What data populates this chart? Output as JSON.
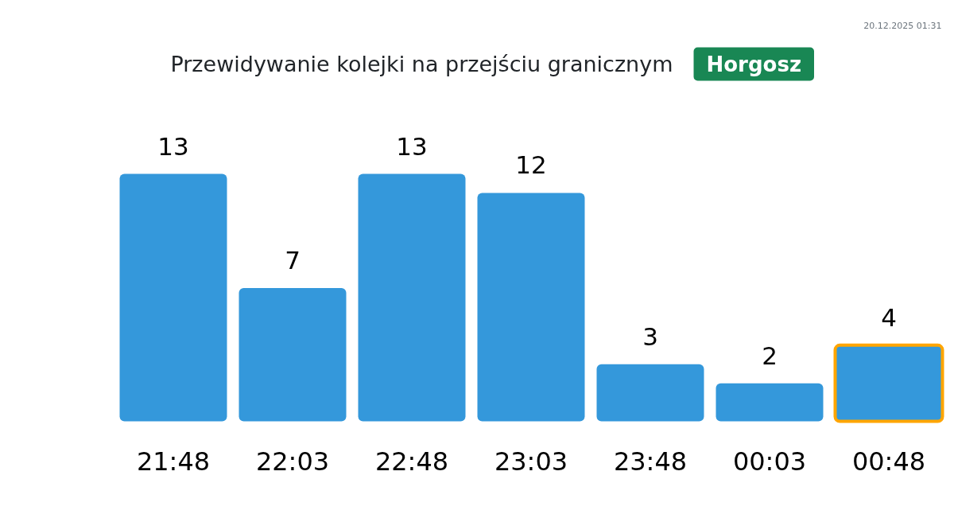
{
  "chart_data": {
    "type": "bar",
    "title": "Przewidywanie kolejki na przejściu granicznym",
    "subtitle": "Horgosz",
    "annotations": [
      "20.12.2025 01:31"
    ],
    "categories": [
      "21:48",
      "22:03",
      "22:48",
      "23:03",
      "23:48",
      "00:03",
      "00:48"
    ],
    "values": [
      13,
      7,
      13,
      12,
      3,
      2,
      4
    ],
    "color": "#3498db",
    "data_labels": true
  }
}
